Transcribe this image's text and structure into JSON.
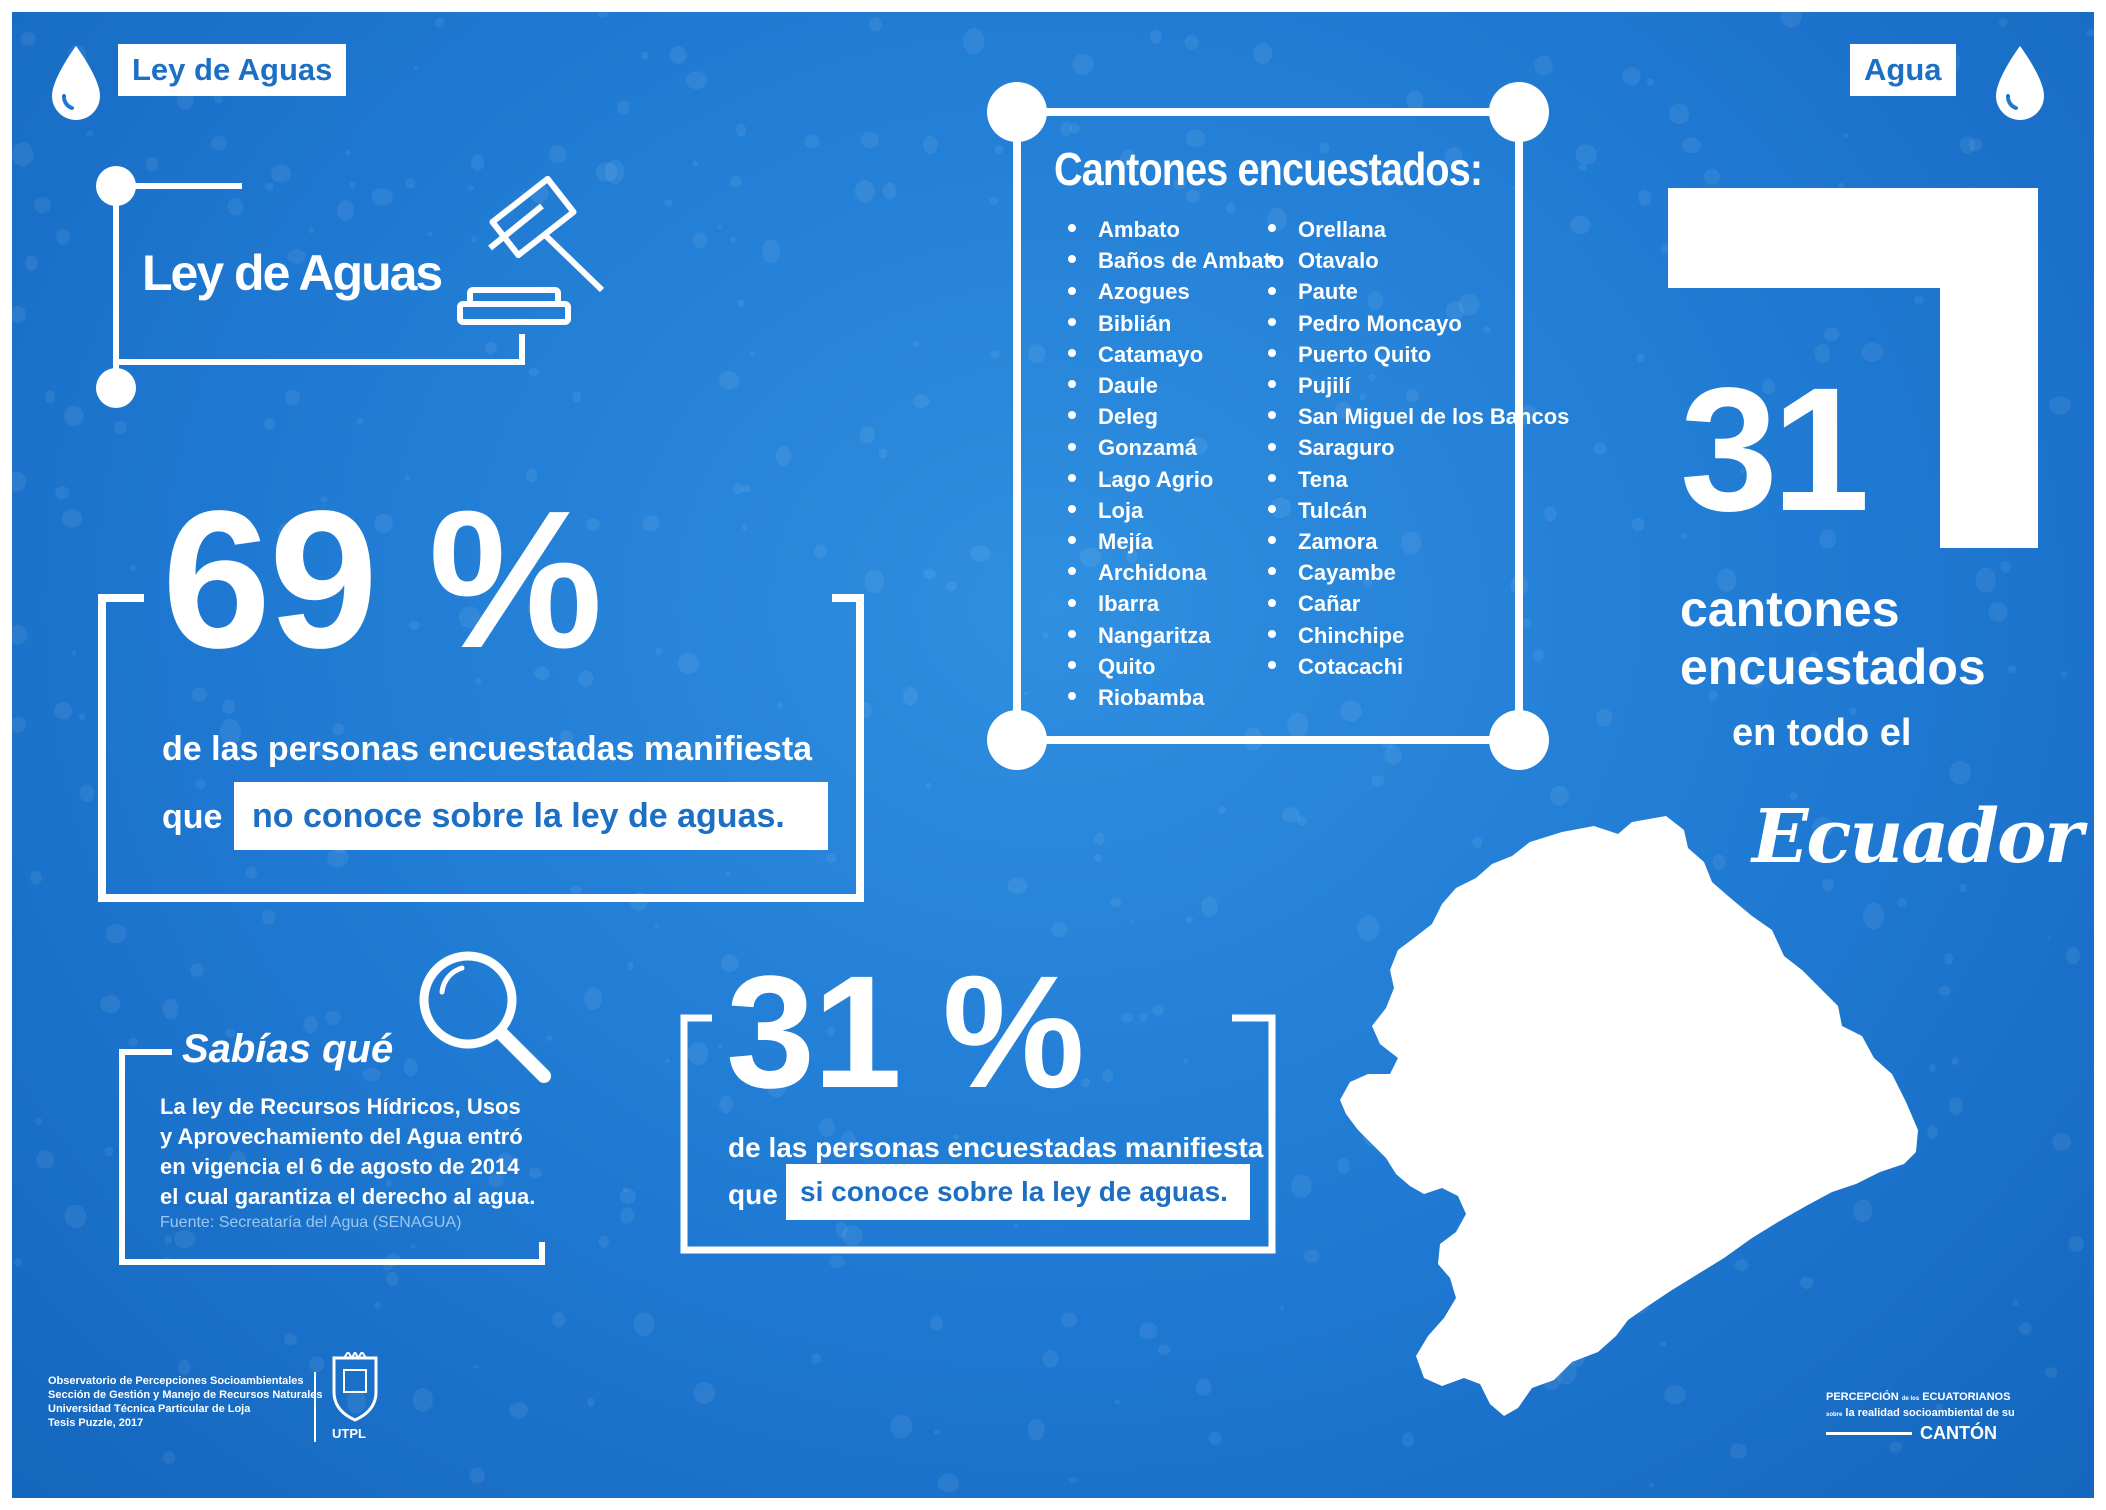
{
  "tags": {
    "left": "Ley de Aguas",
    "right": "Agua"
  },
  "ley_box": {
    "title": "Ley de Aguas"
  },
  "stat_69": {
    "value": "69 %",
    "line1": "de las personas encuestadas manifiesta",
    "que": "que",
    "highlight": "no conoce sobre la ley de aguas."
  },
  "stat_31": {
    "value": "31 %",
    "line1": "de las personas encuestadas manifiesta",
    "que": "que",
    "highlight": "si conoce sobre la ley de aguas."
  },
  "sabias": {
    "title": "Sabías qué",
    "lines": [
      "La ley de Recursos Hídricos, Usos",
      "y  Aprovechamiento del Agua entró",
      "en vigencia el 6 de agosto de 2014",
      "el cual garantiza el derecho al agua."
    ],
    "source": "Fuente:  Secreataría del Agua (SENAGUA)"
  },
  "cantones": {
    "title": "Cantones encuestados:",
    "col1": [
      "Ambato",
      "Baños de Ambato",
      "Azogues",
      "Biblián",
      "Catamayo",
      "Daule",
      "Deleg",
      "Gonzamá",
      "Lago Agrio",
      "Loja",
      "Mejía",
      "Archidona",
      "Ibarra",
      "Nangaritza",
      "Quito",
      "Riobamba"
    ],
    "col2": [
      "Orellana",
      "Otavalo",
      "Paute",
      "Pedro Moncayo",
      "Puerto Quito",
      "Pujilí",
      "San Miguel de los Bancos",
      "Saraguro",
      "Tena",
      "Tulcán",
      "Zamora",
      "Cayambe",
      "Cañar",
      "Chinchipe",
      "Cotacachi"
    ]
  },
  "summary": {
    "number": "31",
    "line1": "cantones",
    "line2": "encuestados",
    "line3": "en todo el",
    "country": "Ecuador"
  },
  "footer": {
    "lines": [
      "Observatorio de Percepciones Socioambientales",
      "Sección de Gestión y Manejo de Recursos Naturales",
      "Universidad Técnica Particular de Loja",
      "Tesis Puzzle, 2017"
    ],
    "logo": "UTPL",
    "brand_top": "PERCEPCIÓN",
    "brand_de": "de los",
    "brand_top2": "ECUATORIANOS",
    "brand_mid_pre": "sobre",
    "brand_mid": "la realidad socioambiental de su",
    "brand_bottom": "CANTÓN"
  },
  "colors": {
    "background": "#1f79d2",
    "accent": "#1d6fc4",
    "text": "#ffffff"
  }
}
